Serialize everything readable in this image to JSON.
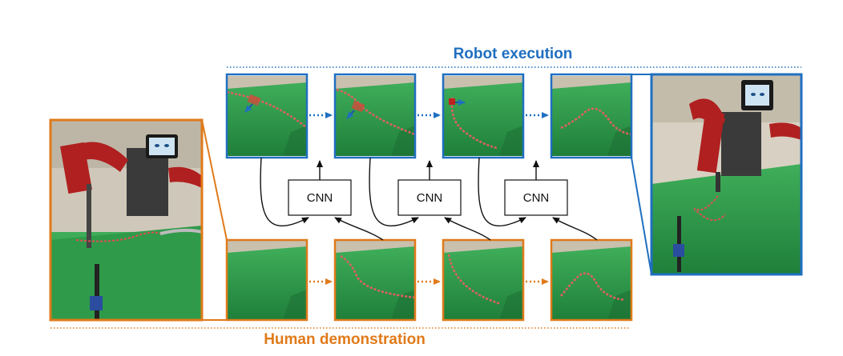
{
  "captions": {
    "robot_execution": "Robot execution",
    "human_demonstration": "Human demonstration"
  },
  "cnn_blocks": [
    {
      "label": "CNN"
    },
    {
      "label": "CNN"
    },
    {
      "label": "CNN"
    }
  ],
  "colors": {
    "robot_blue": "#1f6fc0",
    "human_orange": "#e07a1a",
    "table_green": "#2f9a4a",
    "robot_red": "#b02020"
  },
  "photos": {
    "robot_frames": [
      "robot-frame-1",
      "robot-frame-2",
      "robot-frame-3",
      "robot-frame-4"
    ],
    "human_frames": [
      "human-frame-1",
      "human-frame-2",
      "human-frame-3",
      "human-frame-4"
    ],
    "side_photos": [
      "human-setup-photo",
      "robot-final-photo"
    ]
  }
}
